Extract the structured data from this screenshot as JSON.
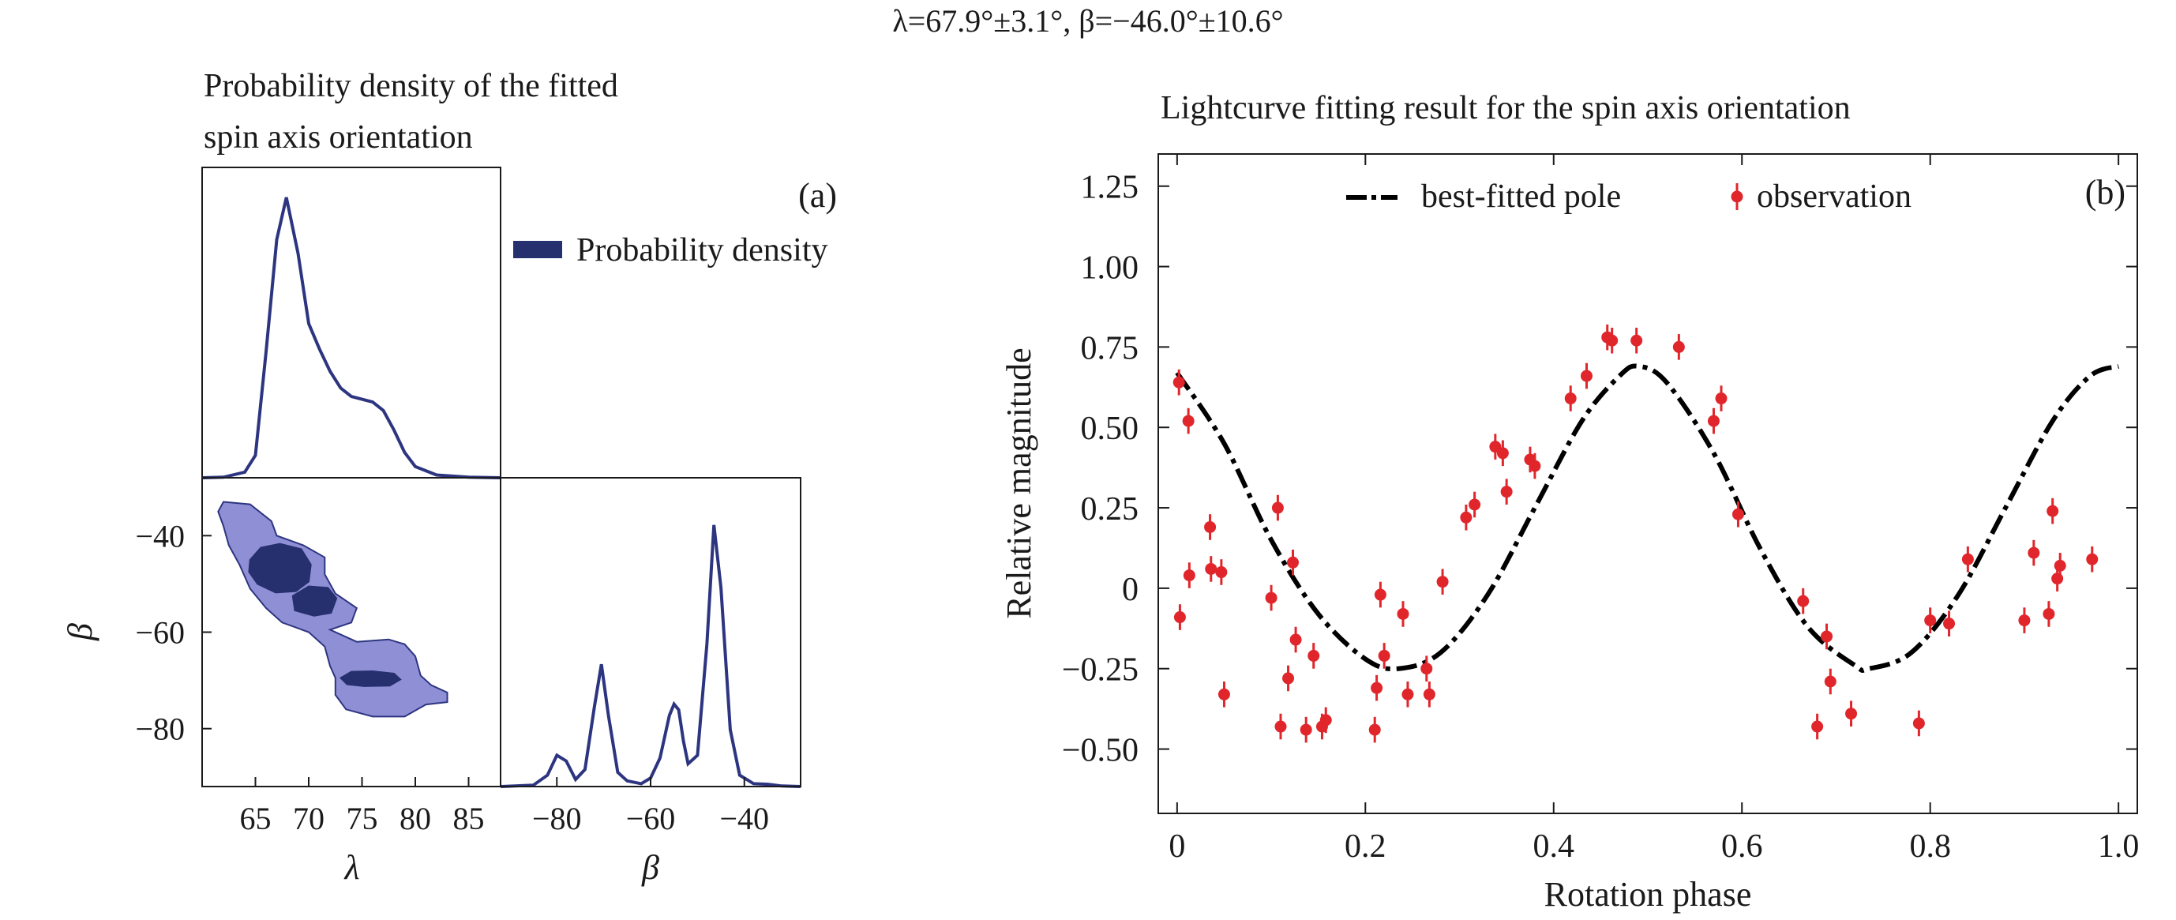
{
  "figure": {
    "suptitle": "λ=67.9°±3.1°, β=−46.0°±10.6°"
  },
  "chart_data": [
    {
      "type": "area",
      "panel": "a",
      "panel_label": "(a)",
      "title": "Probability density of the fitted spin axis orientation",
      "title_lines": [
        "Probability density of the fitted",
        "spin axis orientation"
      ],
      "legend": {
        "label": "Probability density",
        "placement": "right"
      },
      "colors": {
        "fill": "#8f8fd6",
        "core": "#27306e",
        "line": "#2d3580"
      },
      "lambda_axis": {
        "label": "λ",
        "range": [
          60,
          88
        ],
        "ticks": [
          65,
          70,
          75,
          80,
          85
        ]
      },
      "beta_axis": {
        "label": "β",
        "range": [
          -92,
          -28
        ],
        "ticks": [
          -80,
          -60,
          -40
        ]
      },
      "lambda_density": {
        "x": [
          60,
          62,
          64,
          65,
          66,
          67,
          67.9,
          69,
          70,
          71,
          72,
          73,
          74,
          75,
          76,
          77,
          78,
          79,
          80,
          82,
          85,
          88
        ],
        "y": [
          0,
          0.002,
          0.02,
          0.08,
          0.45,
          0.85,
          1.0,
          0.8,
          0.55,
          0.46,
          0.38,
          0.32,
          0.29,
          0.28,
          0.27,
          0.24,
          0.17,
          0.09,
          0.04,
          0.01,
          0.002,
          0
        ]
      },
      "beta_density": {
        "x": [
          -92,
          -85,
          -82,
          -80,
          -78,
          -76,
          -74,
          -72,
          -70.5,
          -69,
          -67,
          -65,
          -62,
          -60,
          -58,
          -56,
          -55,
          -54,
          -53,
          -52,
          -50,
          -48,
          -46.5,
          -45,
          -43,
          -41,
          -38,
          -35,
          -32,
          -28
        ],
        "y": [
          0,
          0.005,
          0.04,
          0.11,
          0.09,
          0.025,
          0.06,
          0.28,
          0.43,
          0.25,
          0.05,
          0.02,
          0.01,
          0.03,
          0.1,
          0.25,
          0.29,
          0.27,
          0.16,
          0.08,
          0.11,
          0.5,
          0.92,
          0.7,
          0.2,
          0.04,
          0.01,
          0.008,
          0.002,
          0
        ]
      },
      "joint_outer_region": [
        [
          62,
          -33
        ],
        [
          64.5,
          -33.5
        ],
        [
          66.5,
          -37
        ],
        [
          67,
          -40
        ],
        [
          69.5,
          -42
        ],
        [
          71.5,
          -44.5
        ],
        [
          71.5,
          -48
        ],
        [
          72.5,
          -52
        ],
        [
          74.5,
          -55
        ],
        [
          74,
          -58
        ],
        [
          72,
          -59.5
        ],
        [
          74.5,
          -62
        ],
        [
          77.5,
          -61.5
        ],
        [
          79,
          -62.5
        ],
        [
          80,
          -65
        ],
        [
          80.5,
          -69
        ],
        [
          81.5,
          -71
        ],
        [
          83,
          -72.5
        ],
        [
          83,
          -74.5
        ],
        [
          81,
          -75
        ],
        [
          79,
          -77.5
        ],
        [
          76,
          -77.5
        ],
        [
          73.5,
          -76
        ],
        [
          72.5,
          -73
        ],
        [
          72.5,
          -69.5
        ],
        [
          72,
          -67
        ],
        [
          71.5,
          -63
        ],
        [
          70,
          -60
        ],
        [
          67.5,
          -58
        ],
        [
          66,
          -55
        ],
        [
          64.5,
          -51
        ],
        [
          63.5,
          -46
        ],
        [
          62.5,
          -42
        ],
        [
          62,
          -38
        ],
        [
          61.5,
          -35
        ]
      ],
      "joint_core_regions": [
        [
          [
            64.5,
            -45
          ],
          [
            65.5,
            -42.5
          ],
          [
            67.3,
            -41.7
          ],
          [
            69.3,
            -42.8
          ],
          [
            70.2,
            -46
          ],
          [
            70,
            -49.5
          ],
          [
            68.8,
            -51.5
          ],
          [
            66.9,
            -51.8
          ],
          [
            65.2,
            -50
          ],
          [
            64.4,
            -47.5
          ]
        ],
        [
          [
            68.5,
            -52.5
          ],
          [
            70,
            -50.5
          ],
          [
            71.8,
            -50.8
          ],
          [
            72.6,
            -53
          ],
          [
            72.1,
            -56
          ],
          [
            70.5,
            -56.6
          ],
          [
            68.7,
            -55.5
          ]
        ],
        [
          [
            73,
            -69.5
          ],
          [
            74,
            -68.2
          ],
          [
            76,
            -68.1
          ],
          [
            78,
            -68.6
          ],
          [
            78.6,
            -69.8
          ],
          [
            77.6,
            -71.1
          ],
          [
            75.2,
            -71.2
          ],
          [
            73.6,
            -70.8
          ]
        ]
      ]
    },
    {
      "type": "line",
      "panel": "b",
      "panel_label": "(b)",
      "title": "Lightcurve fitting result for the spin axis orientation",
      "xlabel": "Rotation phase",
      "ylabel": "Relative magnitude",
      "xlim": [
        -0.02,
        1.02
      ],
      "ylim": [
        -0.7,
        1.35
      ],
      "xticks": [
        0,
        0.2,
        0.4,
        0.6,
        0.8,
        1.0
      ],
      "xtick_labels": [
        "0",
        "0.2",
        "0.4",
        "0.6",
        "0.8",
        "1.0"
      ],
      "yticks": [
        -0.5,
        -0.25,
        0,
        0.25,
        0.5,
        0.75,
        1.0,
        1.25
      ],
      "ytick_labels": [
        "−0.50",
        "−0.25",
        "0",
        "0.25",
        "0.50",
        "0.75",
        "1.00",
        "1.25"
      ],
      "legend": {
        "placement": "top-center"
      },
      "colors": {
        "model": "#000000",
        "observation": "#e0262b"
      },
      "series": [
        {
          "name": "best-fitted pole",
          "style": "dash-dot",
          "x": [
            0,
            0.05,
            0.1,
            0.15,
            0.2,
            0.235,
            0.28,
            0.33,
            0.38,
            0.43,
            0.47,
            0.49,
            0.52,
            0.57,
            0.62,
            0.67,
            0.72,
            0.735,
            0.78,
            0.83,
            0.88,
            0.93,
            0.97,
            1.0
          ],
          "y": [
            0.67,
            0.45,
            0.15,
            -0.08,
            -0.22,
            -0.25,
            -0.2,
            -0.02,
            0.25,
            0.52,
            0.66,
            0.69,
            0.64,
            0.42,
            0.12,
            -0.12,
            -0.24,
            -0.25,
            -0.2,
            -0.02,
            0.25,
            0.52,
            0.66,
            0.69
          ]
        },
        {
          "name": "observation",
          "style": "errorbar",
          "error": 0.04,
          "points": [
            [
              0.002,
              0.64
            ],
            [
              0.003,
              -0.09
            ],
            [
              0.012,
              0.52
            ],
            [
              0.013,
              0.04
            ],
            [
              0.035,
              0.19
            ],
            [
              0.036,
              0.06
            ],
            [
              0.047,
              0.05
            ],
            [
              0.05,
              -0.33
            ],
            [
              0.1,
              -0.03
            ],
            [
              0.107,
              0.25
            ],
            [
              0.11,
              -0.43
            ],
            [
              0.118,
              -0.28
            ],
            [
              0.123,
              0.08
            ],
            [
              0.126,
              -0.16
            ],
            [
              0.137,
              -0.44
            ],
            [
              0.145,
              -0.21
            ],
            [
              0.154,
              -0.43
            ],
            [
              0.158,
              -0.41
            ],
            [
              0.21,
              -0.44
            ],
            [
              0.212,
              -0.31
            ],
            [
              0.216,
              -0.02
            ],
            [
              0.22,
              -0.21
            ],
            [
              0.24,
              -0.08
            ],
            [
              0.245,
              -0.33
            ],
            [
              0.265,
              -0.25
            ],
            [
              0.268,
              -0.33
            ],
            [
              0.282,
              0.02
            ],
            [
              0.307,
              0.22
            ],
            [
              0.316,
              0.26
            ],
            [
              0.338,
              0.44
            ],
            [
              0.346,
              0.42
            ],
            [
              0.35,
              0.3
            ],
            [
              0.375,
              0.4
            ],
            [
              0.38,
              0.38
            ],
            [
              0.418,
              0.59
            ],
            [
              0.435,
              0.66
            ],
            [
              0.457,
              0.78
            ],
            [
              0.462,
              0.77
            ],
            [
              0.488,
              0.77
            ],
            [
              0.533,
              0.75
            ],
            [
              0.57,
              0.52
            ],
            [
              0.578,
              0.59
            ],
            [
              0.596,
              0.23
            ],
            [
              0.665,
              -0.04
            ],
            [
              0.68,
              -0.43
            ],
            [
              0.69,
              -0.15
            ],
            [
              0.694,
              -0.29
            ],
            [
              0.716,
              -0.39
            ],
            [
              0.788,
              -0.42
            ],
            [
              0.8,
              -0.1
            ],
            [
              0.82,
              -0.11
            ],
            [
              0.84,
              0.09
            ],
            [
              0.9,
              -0.1
            ],
            [
              0.91,
              0.11
            ],
            [
              0.926,
              -0.08
            ],
            [
              0.93,
              0.24
            ],
            [
              0.935,
              0.03
            ],
            [
              0.938,
              0.07
            ],
            [
              0.972,
              0.09
            ]
          ]
        }
      ]
    }
  ]
}
